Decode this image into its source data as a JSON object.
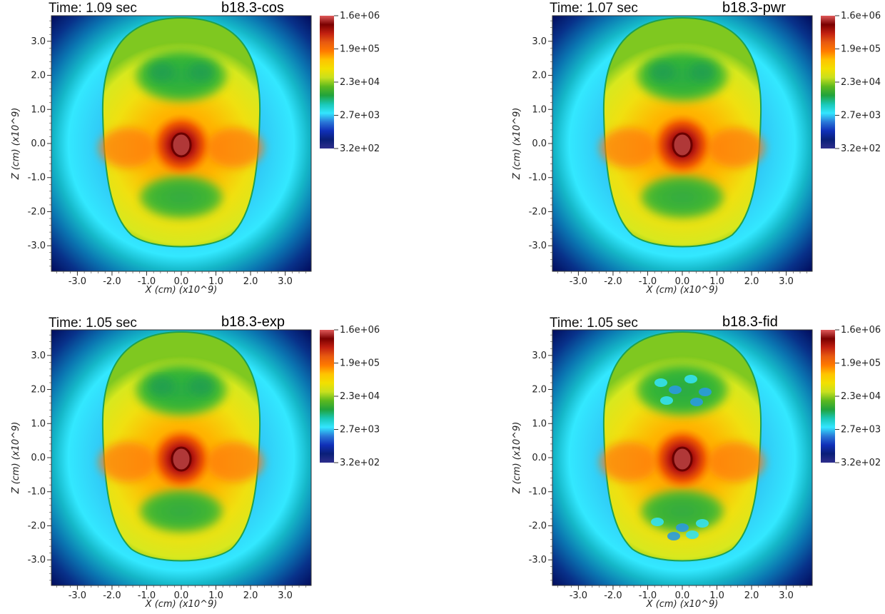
{
  "colors": {
    "colormap": [
      "#2e2e8c",
      "#0a1f78",
      "#1030b8",
      "#2a78d8",
      "#33e6ff",
      "#19c8b6",
      "#21a33c",
      "#5cb81e",
      "#c8e01e",
      "#f2e000",
      "#ffc400",
      "#ff7a00",
      "#e85a10",
      "#c22010",
      "#7a0000",
      "#e05a5a"
    ],
    "outer": "#000a55"
  },
  "chart_data": [
    {
      "type": "heatmap",
      "time_label": "Time: 1.09 sec",
      "run_label": "b18.3-cos",
      "x_ticks": [
        "-3.0",
        "-2.0",
        "-1.0",
        "0.0",
        "1.0",
        "2.0",
        "3.0"
      ],
      "y_ticks": [
        "3.0",
        "2.0",
        "1.0",
        "0.0",
        "-1.0",
        "-2.0",
        "-3.0"
      ],
      "x_tick_values": [
        -3,
        -2,
        -1,
        0,
        1,
        2,
        3
      ],
      "y_tick_values": [
        3,
        2,
        1,
        0,
        -1,
        -2,
        -3
      ],
      "xlabel": "X (cm) (x10^9)",
      "ylabel": "Z (cm) (x10^9)",
      "xlim": [
        -3.75,
        3.75
      ],
      "ylim": [
        -3.75,
        3.75
      ],
      "colorbar_ticks": [
        "1.6e+06",
        "1.9e+05",
        "2.3e+04",
        "2.7e+03",
        "3.2e+02"
      ],
      "colorbar_scale": "log",
      "features": "smooth-core"
    },
    {
      "type": "heatmap",
      "time_label": "Time: 1.07 sec",
      "run_label": "b18.3-pwr",
      "x_ticks": [
        "-3.0",
        "-2.0",
        "-1.0",
        "0.0",
        "1.0",
        "2.0",
        "3.0"
      ],
      "y_ticks": [
        "3.0",
        "2.0",
        "1.0",
        "0.0",
        "-1.0",
        "-2.0",
        "-3.0"
      ],
      "x_tick_values": [
        -3,
        -2,
        -1,
        0,
        1,
        2,
        3
      ],
      "y_tick_values": [
        3,
        2,
        1,
        0,
        -1,
        -2,
        -3
      ],
      "xlabel": "X (cm) (x10^9)",
      "ylabel": "Z (cm) (x10^9)",
      "xlim": [
        -3.75,
        3.75
      ],
      "ylim": [
        -3.75,
        3.75
      ],
      "colorbar_ticks": [
        "1.6e+06",
        "1.9e+05",
        "2.3e+04",
        "2.7e+03",
        "3.2e+02"
      ],
      "colorbar_scale": "log",
      "features": "smooth-core"
    },
    {
      "type": "heatmap",
      "time_label": "Time: 1.05 sec",
      "run_label": "b18.3-exp",
      "x_ticks": [
        "-3.0",
        "-2.0",
        "-1.0",
        "0.0",
        "1.0",
        "2.0",
        "3.0"
      ],
      "y_ticks": [
        "3.0",
        "2.0",
        "1.0",
        "0.0",
        "-1.0",
        "-2.0",
        "-3.0"
      ],
      "x_tick_values": [
        -3,
        -2,
        -1,
        0,
        1,
        2,
        3
      ],
      "y_tick_values": [
        3,
        2,
        1,
        0,
        -1,
        -2,
        -3
      ],
      "xlabel": "X (cm) (x10^9)",
      "ylabel": "Z (cm) (x10^9)",
      "xlim": [
        -3.75,
        3.75
      ],
      "ylim": [
        -3.75,
        3.75
      ],
      "colorbar_ticks": [
        "1.6e+06",
        "1.9e+05",
        "2.3e+04",
        "2.7e+03",
        "3.2e+02"
      ],
      "colorbar_scale": "log",
      "features": "smooth-core"
    },
    {
      "type": "heatmap",
      "time_label": "Time: 1.05 sec",
      "run_label": "b18.3-fid",
      "x_ticks": [
        "-3.0",
        "-2.0",
        "-1.0",
        "0.0",
        "1.0",
        "2.0",
        "3.0"
      ],
      "y_ticks": [
        "3.0",
        "2.0",
        "1.0",
        "0.0",
        "-1.0",
        "-2.0",
        "-3.0"
      ],
      "x_tick_values": [
        -3,
        -2,
        -1,
        0,
        1,
        2,
        3
      ],
      "y_tick_values": [
        3,
        2,
        1,
        0,
        -1,
        -2,
        -3
      ],
      "xlabel": "X (cm) (x10^9)",
      "ylabel": "Z (cm) (x10^9)",
      "xlim": [
        -3.75,
        3.75
      ],
      "ylim": [
        -3.75,
        3.75
      ],
      "colorbar_ticks": [
        "1.6e+06",
        "1.9e+05",
        "2.3e+04",
        "2.7e+03",
        "3.2e+02"
      ],
      "colorbar_scale": "log",
      "features": "turbulent-plumes"
    }
  ]
}
